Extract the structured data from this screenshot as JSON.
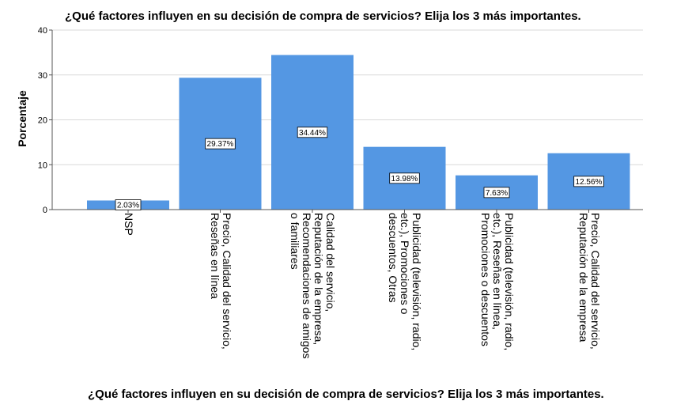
{
  "chart_data": {
    "type": "bar",
    "title": "¿Qué factores influyen en su decisión de compra de servicios? Elija los 3 más importantes.",
    "xlabel": "¿Qué factores influyen en su decisión de compra de servicios? Elija los 3 más importantes.",
    "ylabel": "Porcentaje",
    "ylim": [
      0,
      40
    ],
    "yticks": [
      0,
      10,
      20,
      30,
      40
    ],
    "bar_color": "#5497e3",
    "categories": [
      [
        "NSP"
      ],
      [
        "Precio, Calidad del servicio,",
        "Reseñas en línea"
      ],
      [
        "Calidad del servicio,",
        "Reputación de la empresa,",
        "Recomendaciones de amigos",
        "o familiares"
      ],
      [
        "Publicidad (televisión, radio,",
        "etc.), Promociones o",
        "descuentos, Otras"
      ],
      [
        "Publicidad (televisión, radio,",
        "etc.), Reseñas en línea,",
        "Promociones o descuentos"
      ],
      [
        "Precio, Calidad del servicio,",
        "Reputación de la empresa"
      ]
    ],
    "values": [
      2.03,
      29.37,
      34.44,
      13.98,
      7.63,
      12.56
    ],
    "data_labels": [
      "2.03%",
      "29.37%",
      "34.44%",
      "13.98%",
      "7.63%",
      "12.56%"
    ]
  }
}
